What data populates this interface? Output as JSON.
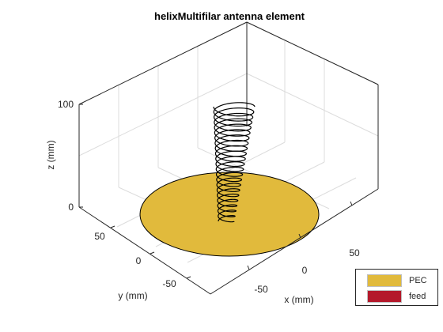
{
  "title": "helixMultifilar antenna element",
  "axes": {
    "x_label": "x (mm)",
    "y_label": "y (mm)",
    "z_label": "z (mm)",
    "x_ticks": [
      "-50",
      "0",
      "50"
    ],
    "y_ticks": [
      "-50",
      "0",
      "50"
    ],
    "z_ticks": [
      "0",
      "100"
    ]
  },
  "legend": {
    "items": [
      {
        "label": "PEC",
        "color": "#E1BA3C"
      },
      {
        "label": "feed",
        "color": "#B4192B"
      }
    ]
  },
  "colors": {
    "ground_plane": "#E1BA3C",
    "helix": "#000000",
    "grid": "#dcdcdc",
    "axis": "#262626"
  }
}
